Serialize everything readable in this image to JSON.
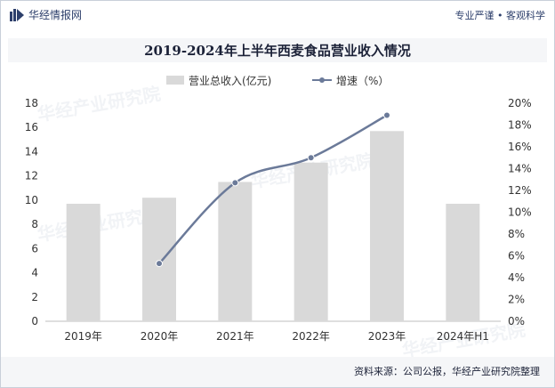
{
  "header": {
    "brand_name": "华经情报网",
    "tagline": "专业严谨 • 客观科学"
  },
  "title": "2019-2024年上半年西麦食品营业收入情况",
  "legend": {
    "bar_label": "营业总收入(亿元)",
    "line_label": "增速（%）"
  },
  "source": "资料来源：公司公报，华经产业研究院整理",
  "watermark": "华经产业研究院",
  "colors": {
    "bar": "#d9d9d9",
    "line": "#6b7a99",
    "brand": "#2d3f6b",
    "title_bg": "#f5f6f8"
  },
  "chart_data": {
    "type": "bar+line",
    "title": "2019-2024年上半年西麦食品营业收入情况",
    "categories": [
      "2019年",
      "2020年",
      "2021年",
      "2022年",
      "2023年",
      "2024年H1"
    ],
    "series": [
      {
        "name": "营业总收入(亿元)",
        "type": "bar",
        "axis": "left",
        "values": [
          9.7,
          10.2,
          11.5,
          13.1,
          15.7,
          9.7
        ]
      },
      {
        "name": "增速（%）",
        "type": "line",
        "axis": "right",
        "values": [
          null,
          5.3,
          12.7,
          15.0,
          18.9,
          null
        ]
      }
    ],
    "y_left": {
      "ylim": [
        0,
        18
      ],
      "ticks": [
        "0",
        "2",
        "4",
        "6",
        "8",
        "10",
        "12",
        "14",
        "16",
        "18"
      ]
    },
    "y_right": {
      "ylim": [
        0,
        20
      ],
      "ticks": [
        "0%",
        "2%",
        "4%",
        "6%",
        "8%",
        "10%",
        "12%",
        "14%",
        "16%",
        "18%",
        "20%"
      ]
    },
    "grid": false,
    "legend_position": "top"
  }
}
